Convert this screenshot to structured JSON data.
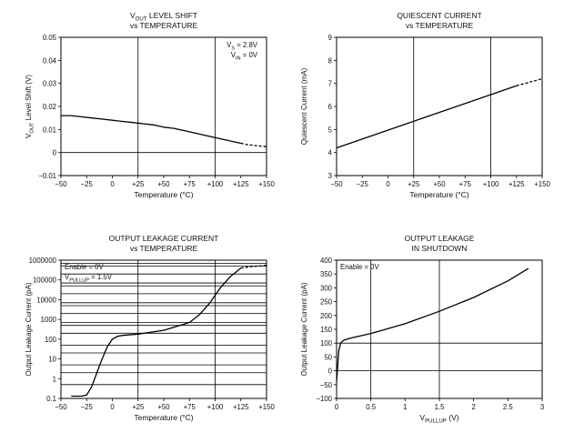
{
  "chart_data": [
    {
      "type": "line",
      "title_main": "V",
      "title_sub": "OUT",
      "title_rest": " LEVEL SHIFT",
      "title_line2": "vs TEMPERATURE",
      "xlabel": "Temperature (°C)",
      "ylabel_main": "V",
      "ylabel_sub": "OUT",
      "ylabel_rest": " Level Shift (V)",
      "xlim": [
        -50,
        150
      ],
      "ylim": [
        -0.01,
        0.05
      ],
      "x_ticks": [
        -50,
        -25,
        0,
        25,
        50,
        75,
        100,
        125,
        150
      ],
      "x_tick_labels": [
        "−50",
        "−25",
        "0",
        "+25",
        "+50",
        "+75",
        "+100",
        "+125",
        "+150"
      ],
      "y_ticks": [
        -0.01,
        0,
        0.01,
        0.02,
        0.03,
        0.04,
        0.05
      ],
      "y_tick_labels": [
        "−0.01",
        "0",
        "0.01",
        "0.02",
        "0.03",
        "0.04",
        "0.05"
      ],
      "x_gridlines": [
        25,
        100
      ],
      "y_gridlines": [
        0
      ],
      "annotations": [
        {
          "main": "V",
          "sub": "S",
          "rest": " = 2.8V"
        },
        {
          "main": "V",
          "sub": "IN",
          "rest": " = 0V"
        }
      ],
      "series": [
        {
          "name": "solid",
          "style": "solid",
          "x": [
            -50,
            -40,
            -30,
            -20,
            -10,
            0,
            10,
            20,
            30,
            40,
            50,
            60,
            70,
            80,
            90,
            100,
            110,
            120,
            125
          ],
          "y": [
            0.016,
            0.016,
            0.0155,
            0.015,
            0.0145,
            0.014,
            0.0135,
            0.013,
            0.0125,
            0.012,
            0.011,
            0.0105,
            0.0095,
            0.0085,
            0.0075,
            0.0065,
            0.0055,
            0.0045,
            0.004
          ]
        },
        {
          "name": "dashed",
          "style": "dashed",
          "x": [
            125,
            130,
            140,
            150
          ],
          "y": [
            0.004,
            0.0035,
            0.003,
            0.0025
          ]
        }
      ]
    },
    {
      "type": "line",
      "title_main": "QUIESCENT CURRENT",
      "title_sub": "",
      "title_rest": "",
      "title_line2": "vs TEMPERATURE",
      "xlabel": "Temperature (°C)",
      "ylabel_main": "Quiescent Current (mA)",
      "ylabel_sub": "",
      "ylabel_rest": "",
      "xlim": [
        -50,
        150
      ],
      "ylim": [
        3,
        9
      ],
      "x_ticks": [
        -50,
        -25,
        0,
        25,
        50,
        75,
        100,
        125,
        150
      ],
      "x_tick_labels": [
        "−50",
        "−25",
        "0",
        "+25",
        "+50",
        "+75",
        "+100",
        "+125",
        "+150"
      ],
      "y_ticks": [
        3,
        4,
        5,
        6,
        7,
        8,
        9
      ],
      "y_tick_labels": [
        "3",
        "4",
        "5",
        "6",
        "7",
        "8",
        "9"
      ],
      "x_gridlines": [
        25,
        100
      ],
      "y_gridlines": [],
      "annotations": [],
      "series": [
        {
          "name": "solid",
          "style": "solid",
          "x": [
            -50,
            125
          ],
          "y": [
            4.2,
            6.9
          ]
        },
        {
          "name": "dashed",
          "style": "dashed",
          "x": [
            125,
            150
          ],
          "y": [
            6.9,
            7.2
          ]
        }
      ]
    },
    {
      "type": "line",
      "scale": "log",
      "title_main": "OUTPUT LEAKAGE CURRENT",
      "title_sub": "",
      "title_rest": "",
      "title_line2": "vs TEMPERATURE",
      "xlabel": "Temperature (°C)",
      "ylabel_main": "Output Leakage Current (pA)",
      "ylabel_sub": "",
      "ylabel_rest": "",
      "xlim": [
        -50,
        150
      ],
      "ylim": [
        0.1,
        1000000
      ],
      "x_ticks": [
        -50,
        -25,
        0,
        25,
        50,
        75,
        100,
        125,
        150
      ],
      "x_tick_labels": [
        "−50",
        "−25",
        "0",
        "+25",
        "+50",
        "+75",
        "+100",
        "+125",
        "+150"
      ],
      "y_ticks": [
        0.1,
        1,
        10,
        100,
        1000,
        10000,
        100000,
        1000000
      ],
      "y_tick_labels": [
        "0.1",
        "1",
        "10",
        "100",
        "1000",
        "10000",
        "100000",
        "1000000"
      ],
      "x_gridlines": [
        25,
        100
      ],
      "y_gridlines": [
        0.5,
        2,
        5,
        20,
        50,
        200,
        500,
        700,
        2000,
        5000,
        7000,
        20000,
        50000,
        70000,
        200000,
        500000,
        700000
      ],
      "annotations": [
        {
          "main": "Enable = 0V",
          "sub": "",
          "rest": ""
        },
        {
          "main": "V",
          "sub": "PULLUP",
          "rest": " = 1.5V"
        }
      ],
      "series": [
        {
          "name": "solid",
          "style": "solid",
          "x": [
            -40,
            -30,
            -25,
            -20,
            -15,
            -10,
            -5,
            0,
            5,
            10,
            25,
            50,
            75,
            85,
            95,
            105,
            115,
            125
          ],
          "y": [
            0.13,
            0.13,
            0.15,
            0.4,
            2,
            10,
            40,
            100,
            140,
            155,
            180,
            280,
            700,
            1800,
            7000,
            40000,
            150000,
            400000
          ]
        },
        {
          "name": "dashed",
          "style": "dashed",
          "x": [
            125,
            135,
            145,
            150
          ],
          "y": [
            400000,
            470000,
            520000,
            550000
          ]
        }
      ]
    },
    {
      "type": "line",
      "title_main": "OUTPUT LEAKAGE",
      "title_sub": "",
      "title_rest": "",
      "title_line2": "IN SHUTDOWN",
      "xlabel_main": "V",
      "xlabel_sub": "PULLUP",
      "xlabel_rest": " (V)",
      "ylabel_main": "Output Leakage Current (pA)",
      "ylabel_sub": "",
      "ylabel_rest": "",
      "xlim": [
        0,
        3
      ],
      "ylim": [
        -100,
        400
      ],
      "x_ticks": [
        0,
        0.5,
        1,
        1.5,
        2,
        2.5,
        3
      ],
      "x_tick_labels": [
        "0",
        "0.5",
        "1",
        "1.5",
        "2",
        "2.5",
        "3"
      ],
      "y_ticks": [
        -100,
        -50,
        0,
        50,
        100,
        150,
        200,
        250,
        300,
        350,
        400
      ],
      "y_tick_labels": [
        "−100",
        "−50",
        "0",
        "50",
        "100",
        "150",
        "200",
        "250",
        "300",
        "350",
        "400"
      ],
      "x_gridlines": [
        0.5,
        1.5
      ],
      "y_gridlines": [
        0,
        100
      ],
      "annotations": [
        {
          "main": "Enable = 0V",
          "sub": "",
          "rest": ""
        }
      ],
      "series": [
        {
          "name": "solid",
          "style": "solid",
          "x": [
            0,
            0.03,
            0.06,
            0.1,
            0.2,
            0.5,
            1,
            1.5,
            2,
            2.5,
            2.8
          ],
          "y": [
            -40,
            70,
            100,
            110,
            118,
            135,
            170,
            215,
            265,
            325,
            370
          ]
        }
      ]
    }
  ]
}
